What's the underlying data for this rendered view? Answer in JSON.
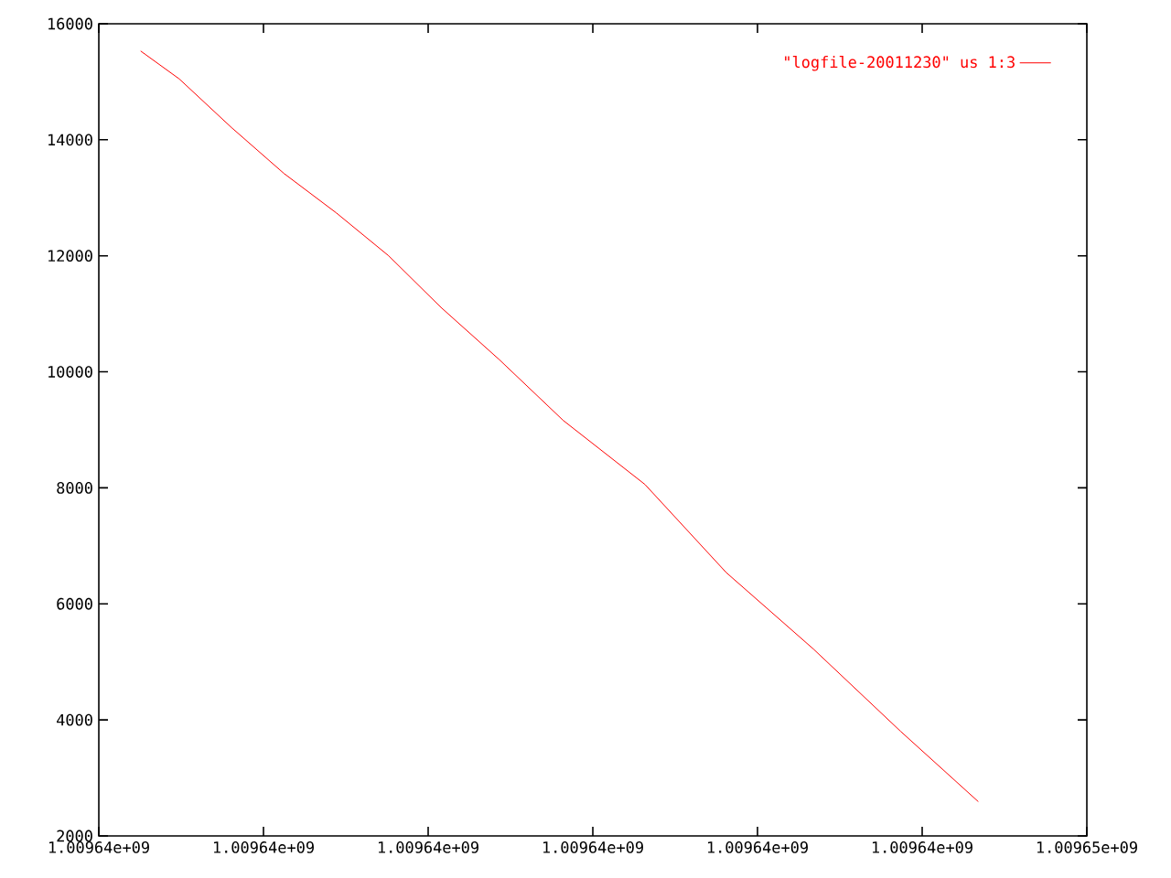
{
  "chart_data": {
    "type": "line",
    "x": [
      1009640254,
      1009640488,
      1009640806,
      1009641124,
      1009641442,
      1009641760,
      1009642078,
      1009642432,
      1009642821,
      1009643316,
      1009643810,
      1009644340,
      1009644870,
      1009645341
    ],
    "series": [
      {
        "name": "\"logfile-20011230\" us 1:3",
        "color": "#ff0000",
        "values": [
          15530,
          15050,
          14210,
          13420,
          12740,
          12000,
          11110,
          10210,
          9160,
          8060,
          6540,
          5220,
          3800,
          2590
        ]
      }
    ],
    "xlim": [
      1009640000,
      1009646000
    ],
    "xticks": [
      {
        "value": 1009640000,
        "label": "1.00964e+09"
      },
      {
        "value": 1009641000,
        "label": "1.00964e+09"
      },
      {
        "value": 1009642000,
        "label": "1.00964e+09"
      },
      {
        "value": 1009643000,
        "label": "1.00964e+09"
      },
      {
        "value": 1009644000,
        "label": "1.00964e+09"
      },
      {
        "value": 1009645000,
        "label": "1.00964e+09"
      },
      {
        "value": 1009646000,
        "label": "1.00965e+09"
      }
    ],
    "ylim": [
      2000,
      16000
    ],
    "yticks": [
      2000,
      4000,
      6000,
      8000,
      10000,
      12000,
      14000,
      16000
    ],
    "legend": "top right",
    "grid": false,
    "marker": "none",
    "line_style": "solid"
  }
}
